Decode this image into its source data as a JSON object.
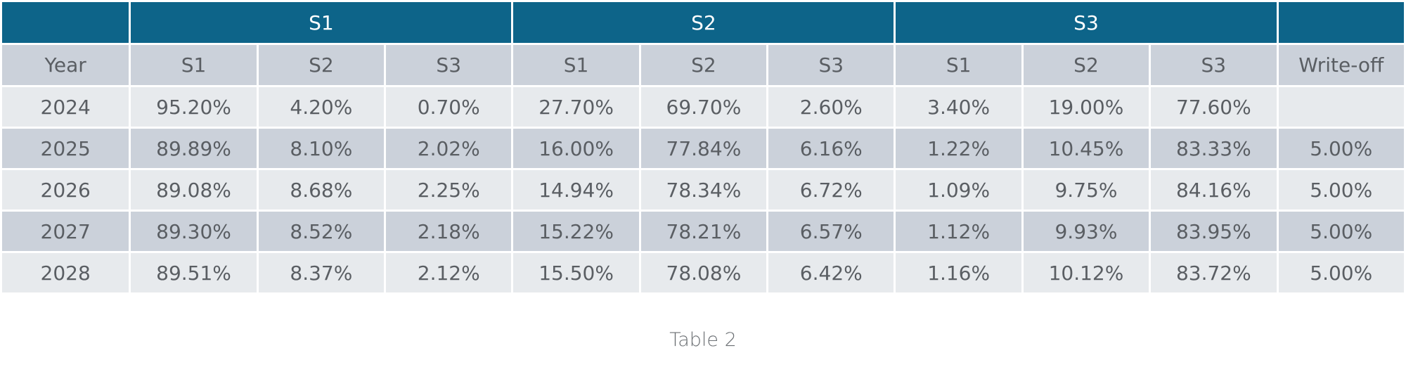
{
  "table": {
    "group_headers": [
      "",
      "S1",
      "S2",
      "S3",
      ""
    ],
    "column_headers": [
      "Year",
      "S1",
      "S2",
      "S3",
      "S1",
      "S2",
      "S3",
      "S1",
      "S2",
      "S3",
      "Write-off"
    ],
    "rows": [
      [
        "2024",
        "95.20%",
        "4.20%",
        "0.70%",
        "27.70%",
        "69.70%",
        "2.60%",
        "3.40%",
        "19.00%",
        "77.60%",
        ""
      ],
      [
        "2025",
        "89.89%",
        "8.10%",
        "2.02%",
        "16.00%",
        "77.84%",
        "6.16%",
        "1.22%",
        "10.45%",
        "83.33%",
        "5.00%"
      ],
      [
        "2026",
        "89.08%",
        "8.68%",
        "2.25%",
        "14.94%",
        "78.34%",
        "6.72%",
        "1.09%",
        "9.75%",
        "84.16%",
        "5.00%"
      ],
      [
        "2027",
        "89.30%",
        "8.52%",
        "2.18%",
        "15.22%",
        "78.21%",
        "6.57%",
        "1.12%",
        "9.93%",
        "83.95%",
        "5.00%"
      ],
      [
        "2028",
        "89.51%",
        "8.37%",
        "2.12%",
        "15.50%",
        "78.08%",
        "6.42%",
        "1.16%",
        "10.12%",
        "83.72%",
        "5.00%"
      ]
    ]
  },
  "caption": "Table 2",
  "colors": {
    "header_bg": "#0d6489",
    "header_text": "#ffffff",
    "band_dark": "#cbd1da",
    "band_light": "#e7eaed",
    "cell_text": "#5a5e63"
  }
}
